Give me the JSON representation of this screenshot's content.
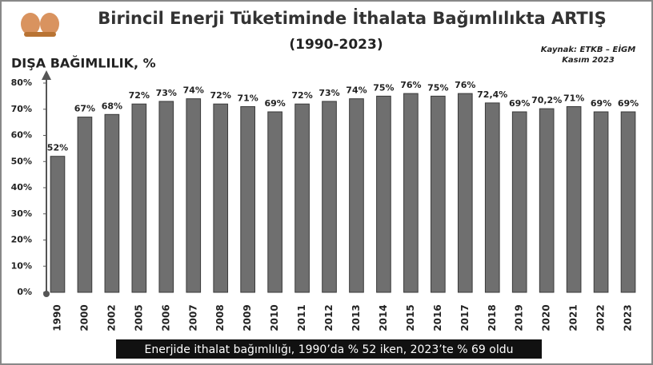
{
  "chart_data": {
    "type": "bar",
    "title": "Birincil Enerji Tüketiminde İthalata Bağımlılıkta ARTIŞ",
    "subtitle": "(1990-2023)",
    "source": "Kaynak: ETKB – EİGM",
    "date": "Kasım 2023",
    "y_label": "DIŞA BAĞIMLILIK, %",
    "footer": "Enerjide ithalat bağımlılığı, 1990’da % 52 iken, 2023’te % 69 oldu",
    "categories": [
      "1990",
      "2000",
      "2002",
      "2005",
      "2006",
      "2007",
      "2008",
      "2009",
      "2010",
      "2011",
      "2012",
      "2013",
      "2014",
      "2015",
      "2016",
      "2017",
      "2018",
      "2019",
      "2020",
      "2021",
      "2022",
      "2023"
    ],
    "values": [
      52,
      67,
      68,
      72,
      73,
      74,
      72,
      71,
      69,
      72,
      73,
      74,
      75,
      76,
      75,
      76,
      72.4,
      69,
      70.2,
      71,
      69,
      69
    ],
    "value_labels": [
      "52%",
      "67%",
      "68%",
      "72%",
      "73%",
      "74%",
      "72%",
      "71%",
      "69%",
      "72%",
      "73%",
      "74%",
      "75%",
      "76%",
      "75%",
      "76%",
      "72,4%",
      "69%",
      "70,2%",
      "71%",
      "69%",
      "69%"
    ],
    "color": "#6f6f6f",
    "ylim": [
      0,
      80
    ],
    "yticks": [
      {
        "value": 0,
        "label": "0%"
      },
      {
        "value": 10,
        "label": "10%"
      },
      {
        "value": 20,
        "label": "20%"
      },
      {
        "value": 30,
        "label": "30%"
      },
      {
        "value": 40,
        "label": "40%"
      },
      {
        "value": 50,
        "label": "50%"
      },
      {
        "value": 60,
        "label": "60%"
      },
      {
        "value": 70,
        "label": "70%"
      },
      {
        "value": 80,
        "label": "80%"
      }
    ],
    "grid": false
  }
}
